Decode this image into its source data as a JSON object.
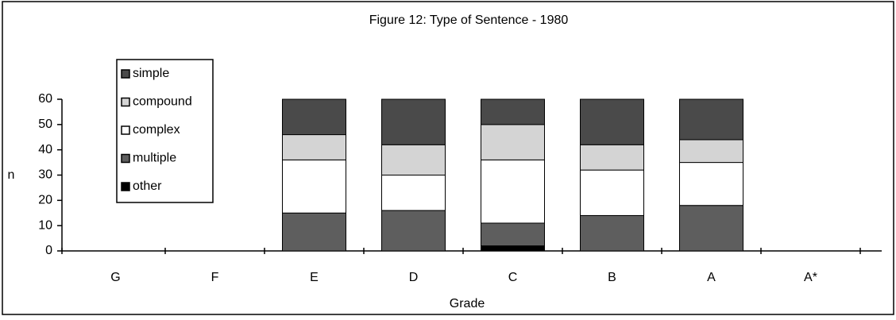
{
  "chart_data": {
    "type": "stacked-bar",
    "title": "Figure 12: Type of Sentence - 1980",
    "x_label": "Grade",
    "y_label": "n",
    "categories": [
      "G",
      "F",
      "E",
      "D",
      "C",
      "B",
      "A",
      "A*"
    ],
    "series": [
      {
        "name": "other",
        "color": "#000000",
        "values": [
          null,
          null,
          0,
          0,
          2,
          0,
          0,
          null
        ]
      },
      {
        "name": "multiple",
        "color": "#5e5e5e",
        "values": [
          null,
          null,
          15,
          16,
          9,
          14,
          18,
          null
        ]
      },
      {
        "name": "complex",
        "color": "#ffffff",
        "values": [
          null,
          null,
          21,
          14,
          25,
          18,
          17,
          null
        ]
      },
      {
        "name": "compound",
        "color": "#d4d4d4",
        "values": [
          null,
          null,
          10,
          12,
          14,
          10,
          9,
          null
        ]
      },
      {
        "name": "simple",
        "color": "#4a4a4a",
        "values": [
          null,
          null,
          14,
          18,
          10,
          18,
          16,
          null
        ]
      }
    ],
    "ylim": [
      0,
      60
    ],
    "yticks": [
      0,
      10,
      20,
      30,
      40,
      50,
      60
    ]
  }
}
